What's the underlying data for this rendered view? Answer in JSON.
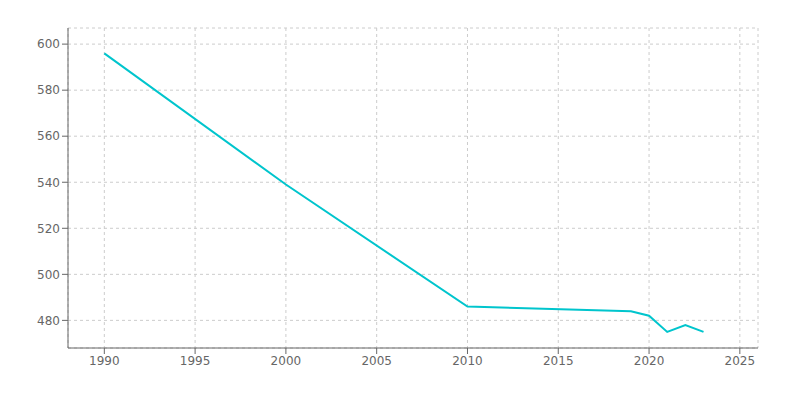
{
  "chart_data": {
    "type": "line",
    "x": [
      1990,
      2000,
      2010,
      2019,
      2020,
      2021,
      2022,
      2023
    ],
    "values": [
      596,
      539,
      486,
      484,
      482,
      475,
      478,
      475
    ],
    "color": "#00C5CD",
    "xlim": [
      1988,
      2026
    ],
    "ylim": [
      468,
      607
    ],
    "xticks": [
      1990,
      1995,
      2000,
      2005,
      2010,
      2015,
      2020,
      2025
    ],
    "yticks": [
      480,
      500,
      520,
      540,
      560,
      580,
      600
    ],
    "grid": true
  }
}
